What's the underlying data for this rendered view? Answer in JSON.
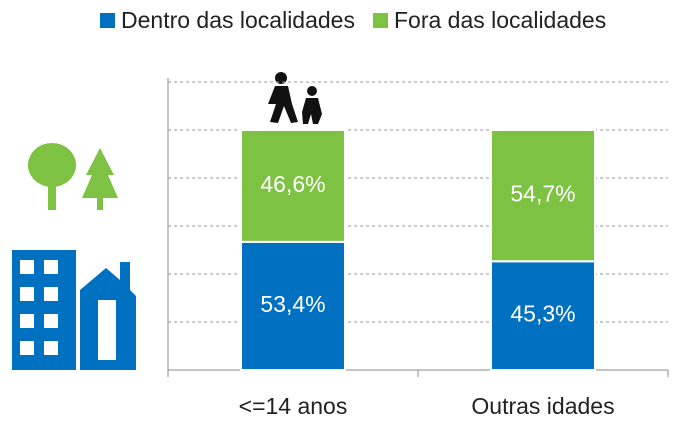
{
  "chart_data": {
    "type": "stacked_bar",
    "categories": [
      "<=14 anos",
      "Outras idades"
    ],
    "series": [
      {
        "name": "Dentro das localidades",
        "color": "#0070c0",
        "values": [
          53.4,
          45.3
        ],
        "value_labels": [
          "53,4%",
          "45,3%"
        ]
      },
      {
        "name": "Fora das localidades",
        "color": "#7dc242",
        "values": [
          46.6,
          54.7
        ],
        "value_labels": [
          "46,6%",
          "54,7%"
        ]
      }
    ],
    "ylim": [
      0,
      120
    ],
    "yticks": [
      0,
      20,
      40,
      60,
      80,
      100,
      120
    ],
    "grid": true,
    "legend": "top"
  }
}
